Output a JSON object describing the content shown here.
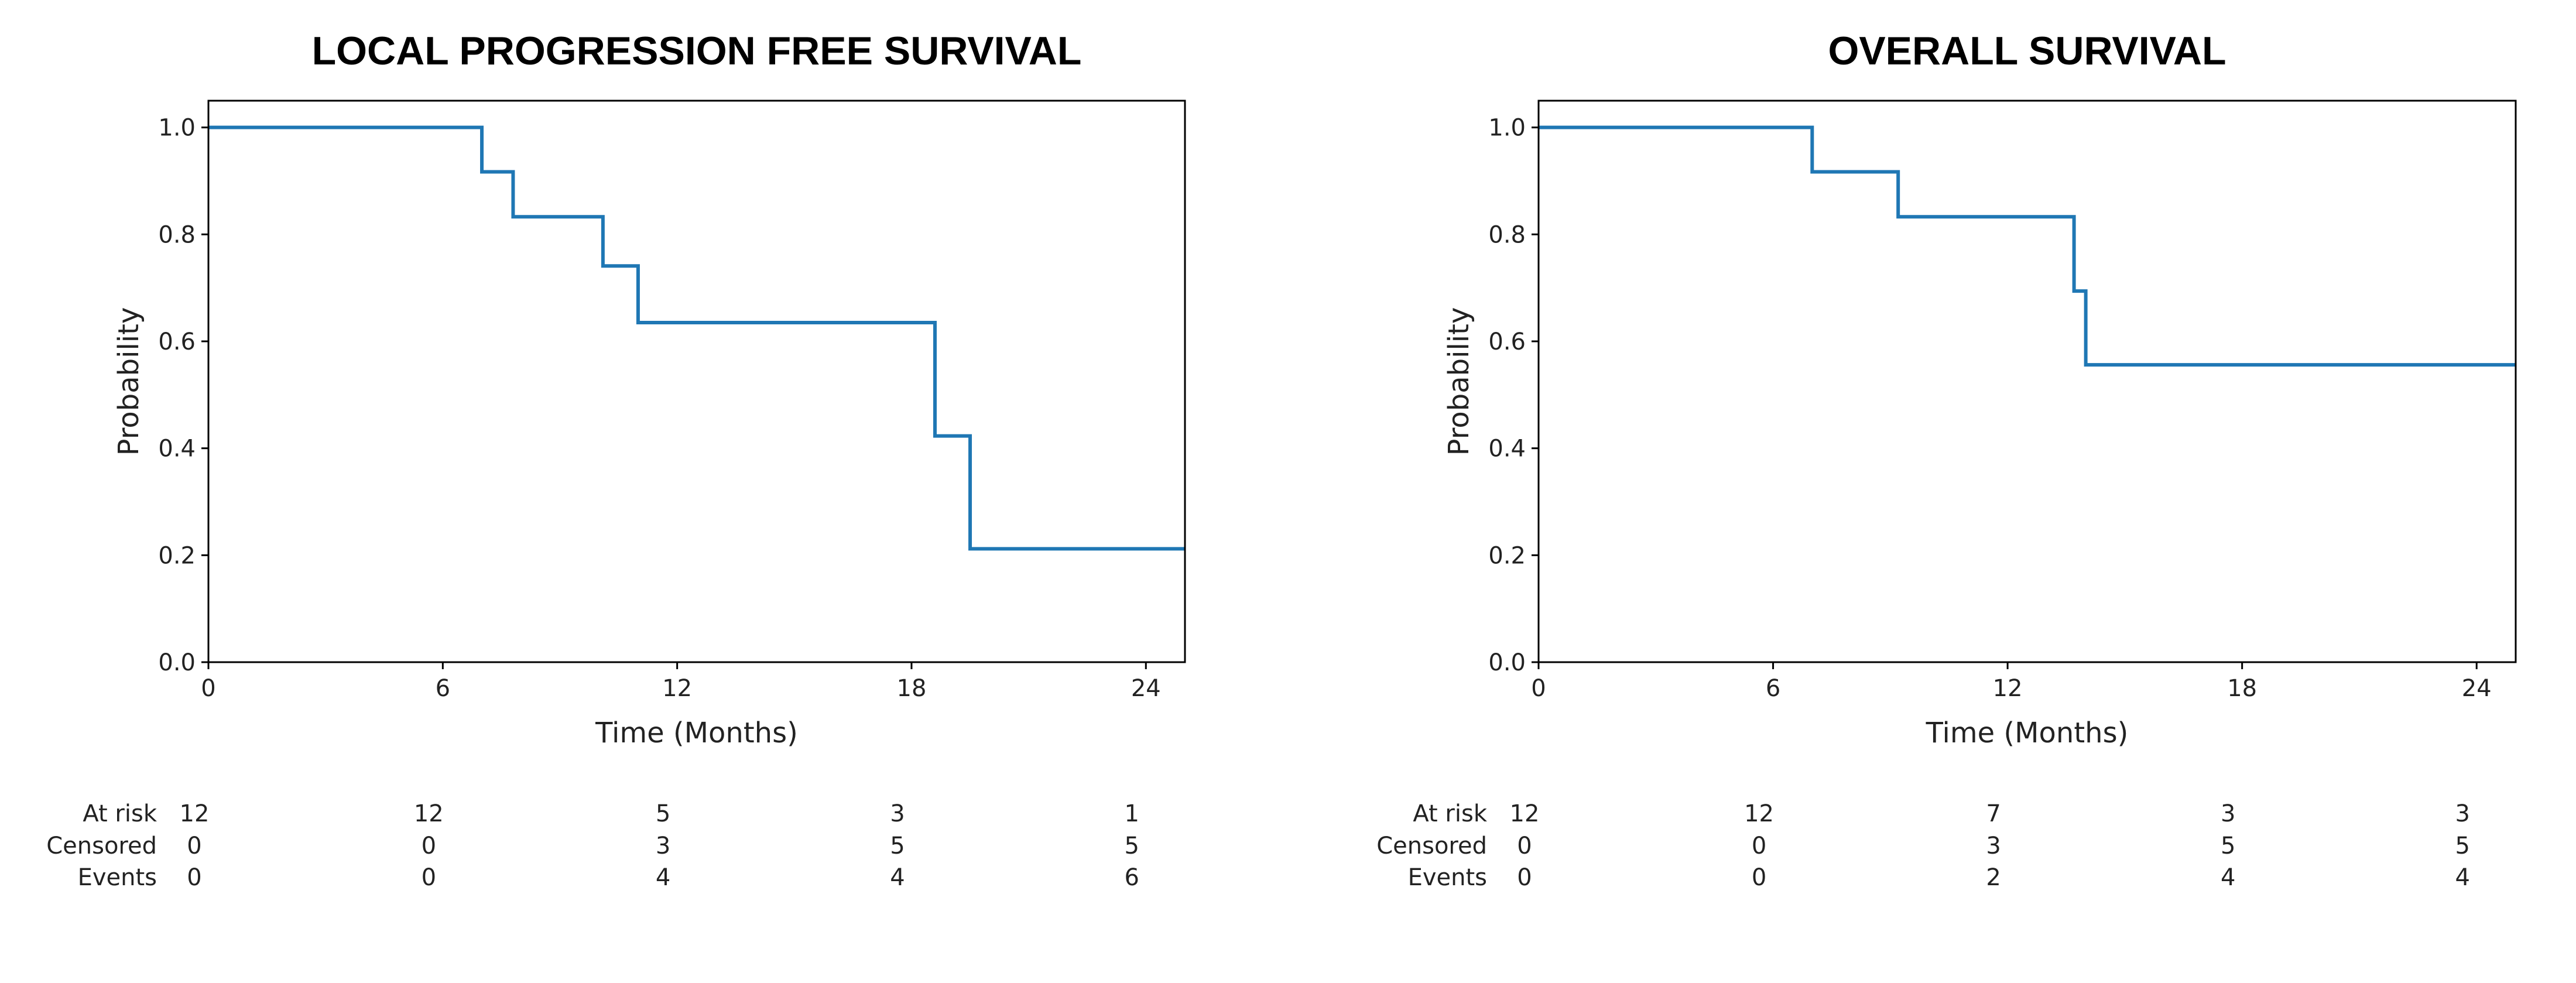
{
  "chart_data": [
    {
      "type": "line",
      "step": true,
      "title": "LOCAL PROGRESSION FREE SURVIVAL",
      "xlabel": "Time (Months)",
      "ylabel": "Probability",
      "xlim": [
        0,
        25
      ],
      "ylim": [
        0,
        1.05
      ],
      "xticks": [
        0,
        6,
        12,
        18,
        24
      ],
      "yticks": [
        "0.0",
        "0.2",
        "0.4",
        "0.6",
        "0.8",
        "1.0"
      ],
      "grid": false,
      "color": "#1f77b4",
      "series": [
        {
          "x": [
            0,
            7.0,
            7.8,
            10.1,
            11.0,
            18.6,
            19.5,
            25
          ],
          "y": [
            1.0,
            0.917,
            0.833,
            0.741,
            0.635,
            0.423,
            0.212,
            0.212
          ]
        }
      ],
      "risk_table": {
        "times": [
          0,
          6,
          12,
          18,
          24
        ],
        "rows": [
          {
            "label": "At risk",
            "values": [
              "12",
              "12",
              "5",
              "3",
              "1"
            ]
          },
          {
            "label": "Censored",
            "values": [
              "0",
              "0",
              "3",
              "5",
              "5"
            ]
          },
          {
            "label": "Events",
            "values": [
              "0",
              "0",
              "4",
              "4",
              "6"
            ]
          }
        ]
      }
    },
    {
      "type": "line",
      "step": true,
      "title": "OVERALL SURVIVAL",
      "xlabel": "Time (Months)",
      "ylabel": "Probability",
      "xlim": [
        0,
        25
      ],
      "ylim": [
        0,
        1.05
      ],
      "xticks": [
        0,
        6,
        12,
        18,
        24
      ],
      "yticks": [
        "0.0",
        "0.2",
        "0.4",
        "0.6",
        "0.8",
        "1.0"
      ],
      "grid": false,
      "color": "#1f77b4",
      "series": [
        {
          "x": [
            0,
            7.0,
            9.2,
            13.7,
            14.0,
            25
          ],
          "y": [
            1.0,
            0.917,
            0.833,
            0.694,
            0.556,
            0.556
          ]
        }
      ],
      "risk_table": {
        "times": [
          0,
          6,
          12,
          18,
          24
        ],
        "rows": [
          {
            "label": "At risk",
            "values": [
              "12",
              "12",
              "7",
              "3",
              "3"
            ]
          },
          {
            "label": "Censored",
            "values": [
              "0",
              "0",
              "3",
              "5",
              "5"
            ]
          },
          {
            "label": "Events",
            "values": [
              "0",
              "0",
              "2",
              "4",
              "4"
            ]
          }
        ]
      }
    }
  ]
}
